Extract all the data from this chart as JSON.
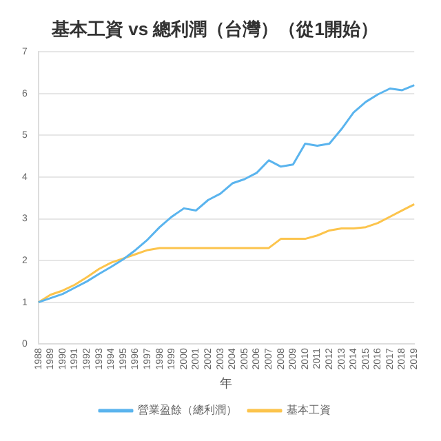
{
  "chart_data": {
    "type": "line",
    "title": "基本工資 vs 總利潤（台灣）（從1開始）",
    "xlabel": "年",
    "categories": [
      "1988",
      "1989",
      "1990",
      "1991",
      "1992",
      "1993",
      "1994",
      "1995",
      "1996",
      "1997",
      "1998",
      "1999",
      "2000",
      "2001",
      "2002",
      "2003",
      "2004",
      "2005",
      "2006",
      "2007",
      "2008",
      "2009",
      "2010",
      "2011",
      "2012",
      "2013",
      "2014",
      "2015",
      "2016",
      "2017",
      "2018",
      "2019"
    ],
    "series": [
      {
        "name": "營業盈餘（總利潤）",
        "color": "#5ab4ee",
        "values": [
          1.0,
          1.1,
          1.2,
          1.35,
          1.5,
          1.68,
          1.85,
          2.03,
          2.25,
          2.5,
          2.8,
          3.05,
          3.25,
          3.2,
          3.45,
          3.6,
          3.85,
          3.95,
          4.1,
          4.4,
          4.25,
          4.3,
          4.8,
          4.75,
          4.8,
          5.15,
          5.55,
          5.8,
          5.98,
          6.12,
          6.08,
          6.2
        ]
      },
      {
        "name": "基本工資",
        "color": "#fcc44c",
        "values": [
          1.0,
          1.18,
          1.28,
          1.42,
          1.6,
          1.8,
          1.95,
          2.05,
          2.15,
          2.25,
          2.3,
          2.3,
          2.3,
          2.3,
          2.3,
          2.3,
          2.3,
          2.3,
          2.3,
          2.3,
          2.52,
          2.52,
          2.52,
          2.6,
          2.72,
          2.77,
          2.77,
          2.8,
          2.9,
          3.05,
          3.2,
          3.35
        ]
      }
    ],
    "ylim": [
      0,
      7
    ],
    "yticks": [
      0,
      1,
      2,
      3,
      4,
      5,
      6,
      7
    ],
    "grid": "y",
    "legend": "bottom",
    "marker": "none",
    "line_style": "solid"
  }
}
